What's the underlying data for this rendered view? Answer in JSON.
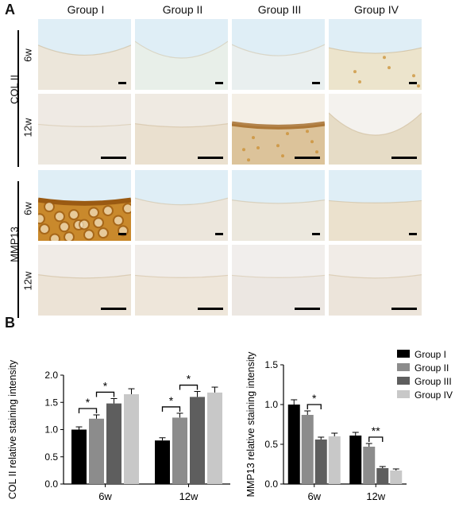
{
  "panel_a": {
    "letter": "A",
    "groups": [
      "Group I",
      "Group II",
      "Group III",
      "Group IV"
    ],
    "markers": [
      {
        "name": "COL II",
        "timepoints": [
          "6w",
          "12w"
        ]
      },
      {
        "name": "MMP13",
        "timepoints": [
          "6w",
          "12w"
        ]
      }
    ],
    "colors": {
      "blue_bg": "#dfeef6",
      "tissue_light": "#f1ede6",
      "stain_brown": "#c98a2a",
      "stain_dark": "#9a5a12"
    }
  },
  "panel_b": {
    "letter": "B"
  },
  "chart_data": [
    {
      "type": "bar",
      "ylabel": "COL II relative staining intensity",
      "xlabel": "",
      "categories": [
        "6w",
        "12w"
      ],
      "ylim": [
        0,
        2.0
      ],
      "yticks": [
        "0.0",
        "0.5",
        "1.0",
        "1.5",
        "2.0"
      ],
      "series": [
        {
          "name": "Group I",
          "color": "#000000",
          "values": [
            1.0,
            0.8
          ],
          "errors": [
            0.05,
            0.05
          ]
        },
        {
          "name": "Group II",
          "color": "#8c8c8c",
          "values": [
            1.2,
            1.22
          ],
          "errors": [
            0.07,
            0.08
          ]
        },
        {
          "name": "Group III",
          "color": "#5e5e5e",
          "values": [
            1.48,
            1.6
          ],
          "errors": [
            0.09,
            0.1
          ]
        },
        {
          "name": "Group IV",
          "color": "#c8c8c8",
          "values": [
            1.65,
            1.68
          ],
          "errors": [
            0.1,
            0.1
          ]
        }
      ],
      "significance": [
        {
          "category": 0,
          "from": 0,
          "to": 1,
          "label": "*"
        },
        {
          "category": 0,
          "from": 1,
          "to": 2,
          "label": "*"
        },
        {
          "category": 1,
          "from": 0,
          "to": 1,
          "label": "*"
        },
        {
          "category": 1,
          "from": 1,
          "to": 2,
          "label": "*"
        }
      ]
    },
    {
      "type": "bar",
      "ylabel": "MMP13 relative staining intensity",
      "xlabel": "",
      "categories": [
        "6w",
        "12w"
      ],
      "ylim": [
        0,
        1.5
      ],
      "yticks": [
        "0.0",
        "0.5",
        "1.0",
        "1.5"
      ],
      "legend_placement": "top-right",
      "series": [
        {
          "name": "Group I",
          "color": "#000000",
          "values": [
            1.0,
            0.61
          ],
          "errors": [
            0.06,
            0.04
          ]
        },
        {
          "name": "Group II",
          "color": "#8c8c8c",
          "values": [
            0.87,
            0.47
          ],
          "errors": [
            0.05,
            0.04
          ]
        },
        {
          "name": "Group III",
          "color": "#5e5e5e",
          "values": [
            0.56,
            0.2
          ],
          "errors": [
            0.03,
            0.02
          ]
        },
        {
          "name": "Group IV",
          "color": "#c8c8c8",
          "values": [
            0.6,
            0.17
          ],
          "errors": [
            0.04,
            0.02
          ]
        }
      ],
      "significance": [
        {
          "category": 0,
          "from": 1,
          "to": 2,
          "label": "*"
        },
        {
          "category": 1,
          "from": 1,
          "to": 2,
          "label": "**"
        }
      ]
    }
  ]
}
